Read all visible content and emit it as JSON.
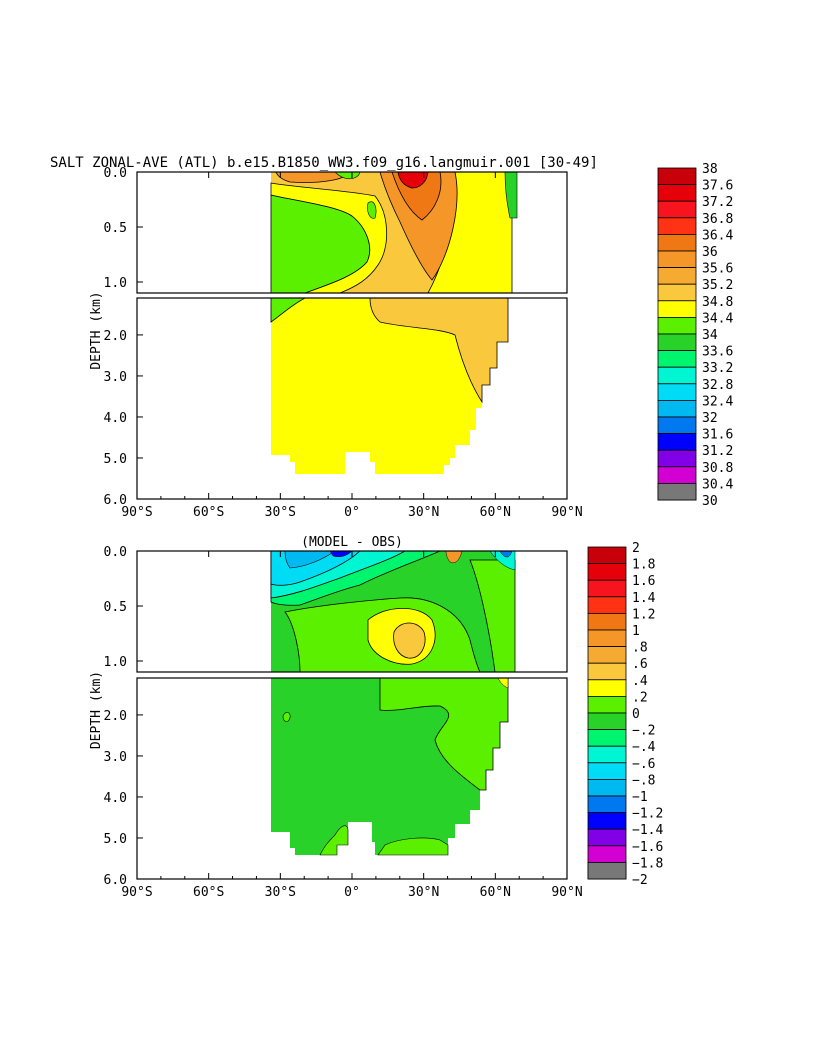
{
  "title": "SALT ZONAL-AVE (ATL) b.e15.B1850_WW3.f09_g16.langmuir.001 [30-49]",
  "chart_data": [
    {
      "type": "heatmap",
      "panel": "top",
      "title": "",
      "xlabel": "",
      "ylabel": "DEPTH (km)",
      "x_ticks": [
        "90°S",
        "60°S",
        "30°S",
        "0°",
        "30°N",
        "60°N",
        "90°N"
      ],
      "x_range_deg": [
        -90,
        90
      ],
      "upper_y_ticks": [
        "0.0",
        "0.5",
        "1.0"
      ],
      "upper_y_range_km": [
        0,
        1.1
      ],
      "lower_y_ticks": [
        "2.0",
        "3.0",
        "4.0",
        "5.0",
        "6.0"
      ],
      "lower_y_range_km": [
        1.1,
        6.0
      ],
      "colorbar_labels": [
        "38",
        "37.6",
        "37.2",
        "36.8",
        "36.4",
        "36",
        "35.6",
        "35.2",
        "34.8",
        "34.4",
        "34",
        "33.6",
        "33.2",
        "32.8",
        "32.4",
        "32",
        "31.6",
        "31.2",
        "30.8",
        "30.4",
        "30"
      ],
      "colorbar_colors": [
        "#c8000a",
        "#e6000a",
        "#f8141e",
        "#ff3214",
        "#f07814",
        "#f59628",
        "#f5aa32",
        "#fac83c",
        "#ffff00",
        "#5af000",
        "#28d228",
        "#00f56e",
        "#00f5d2",
        "#00dcf5",
        "#00b9f0",
        "#0078f0",
        "#0000ff",
        "#8200e6",
        "#d200d2",
        "#c8c8c8",
        "#787878"
      ]
    },
    {
      "type": "heatmap",
      "panel": "bottom",
      "title": "(MODEL - OBS)",
      "xlabel": "",
      "ylabel": "DEPTH (km)",
      "x_ticks": [
        "90°S",
        "60°S",
        "30°S",
        "0°",
        "30°N",
        "60°N",
        "90°N"
      ],
      "x_range_deg": [
        -90,
        90
      ],
      "upper_y_ticks": [
        "0.0",
        "0.5",
        "1.0"
      ],
      "upper_y_range_km": [
        0,
        1.1
      ],
      "lower_y_ticks": [
        "2.0",
        "3.0",
        "4.0",
        "5.0",
        "6.0"
      ],
      "lower_y_range_km": [
        1.1,
        6.0
      ],
      "colorbar_labels": [
        "2",
        "1.8",
        "1.6",
        "1.4",
        "1.2",
        "1",
        ".8",
        ".6",
        ".4",
        ".2",
        "0",
        "-.2",
        "-.4",
        "-.6",
        "-.8",
        "-1",
        "-1.2",
        "-1.4",
        "-1.6",
        "-1.8",
        "-2"
      ],
      "colorbar_colors": [
        "#c8000a",
        "#e6000a",
        "#f8141e",
        "#ff3214",
        "#f07814",
        "#f59628",
        "#f5aa32",
        "#fac83c",
        "#ffff00",
        "#5af000",
        "#28d228",
        "#00f56e",
        "#00f5d2",
        "#00dcf5",
        "#00b9f0",
        "#0078f0",
        "#0000ff",
        "#8200e6",
        "#d200d2",
        "#c8c8c8",
        "#787878"
      ]
    }
  ]
}
